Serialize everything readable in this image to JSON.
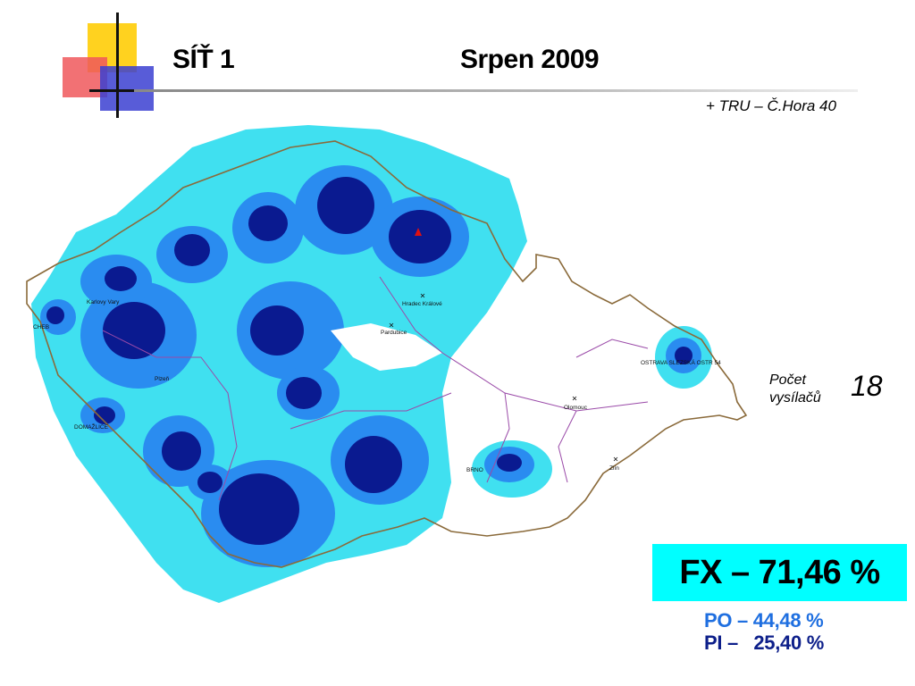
{
  "header": {
    "title_left": "SÍŤ 1",
    "title_right": "Srpen 2009",
    "subtitle": "+ TRU – Č.Hora 40"
  },
  "stats": {
    "pocet_label": "Počet vysílačů",
    "pocet_value": "18",
    "fx": "FX – 71,46 %",
    "po": "PO – 44,48 %",
    "pi": "PI –   25,40 %"
  },
  "map": {
    "cities": [
      {
        "label": "CHEB"
      },
      {
        "label": "Karlovy Vary"
      },
      {
        "label": "Plzeň"
      },
      {
        "label": "DOMAŽLICE"
      },
      {
        "label": "Hradec Králové"
      },
      {
        "label": "Pardubice"
      },
      {
        "label": "Olomouc"
      },
      {
        "label": "Zlín"
      },
      {
        "label": "OSTRAVA SLEZSKÁ OSTR 54"
      },
      {
        "label": "BRNO"
      }
    ],
    "colors": {
      "coverage_outer": "#40e0f0",
      "coverage_mid": "#2a8cf0",
      "coverage_core": "#0a1a90",
      "border": "#8a6a3a",
      "regions": "#9a4aa8",
      "accent_box": "#00ffff",
      "po_text": "#1f6fe0",
      "pi_text": "#0d1f8a"
    }
  }
}
